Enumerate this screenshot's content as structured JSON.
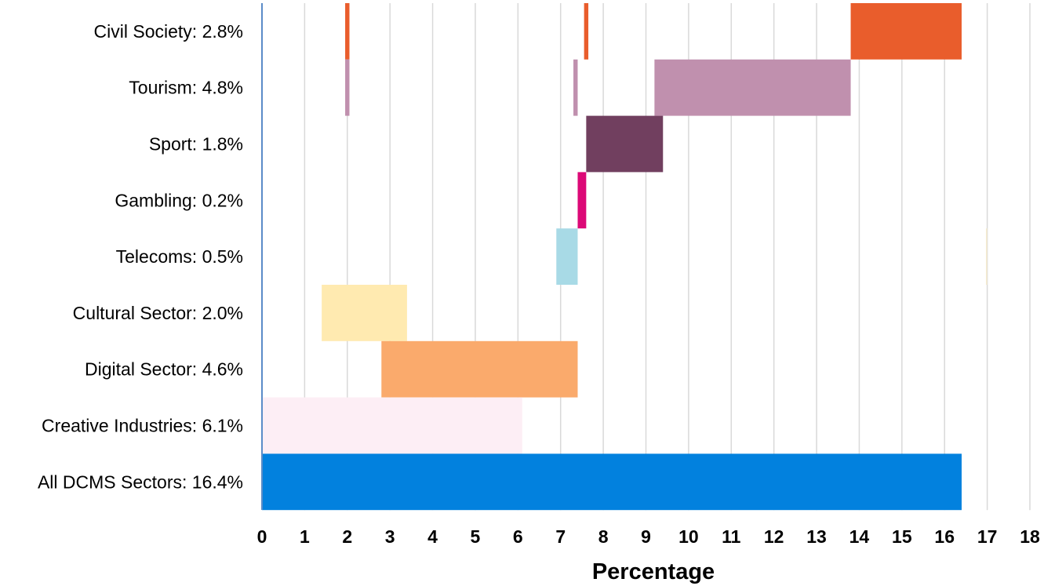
{
  "chart_data": {
    "type": "bar",
    "subtype": "floating-horizontal-bar",
    "xlabel": "Percentage",
    "xlim": [
      0,
      18
    ],
    "x_ticks": [
      "0",
      "1",
      "2",
      "3",
      "4",
      "5",
      "6",
      "7",
      "8",
      "9",
      "10",
      "11",
      "12",
      "13",
      "14",
      "15",
      "16",
      "17",
      "18"
    ],
    "grid": "vertical",
    "categories": [
      "Civil Society: 2.8%",
      "Tourism: 4.8%",
      "Sport: 1.8%",
      "Gambling: 0.2%",
      "Telecoms: 0.5%",
      "Cultural Sector: 2.0%",
      "Digital Sector: 4.6%",
      "Creative Industries: 6.1%",
      "All DCMS Sectors: 16.4%"
    ],
    "segments": [
      {
        "category": "Civil Society: 2.8%",
        "start": 13.8,
        "end": 16.4,
        "color": "#E95D2C"
      },
      {
        "category": "Civil Society: 2.8%",
        "start": 7.55,
        "end": 7.65,
        "color": "#E95D2C"
      },
      {
        "category": "Civil Society: 2.8%",
        "start": 1.95,
        "end": 2.05,
        "color": "#E95D2C"
      },
      {
        "category": "Tourism: 4.8%",
        "start": 9.2,
        "end": 13.8,
        "color": "#C090AE"
      },
      {
        "category": "Tourism: 4.8%",
        "start": 7.3,
        "end": 7.4,
        "color": "#C090AE"
      },
      {
        "category": "Tourism: 4.8%",
        "start": 1.95,
        "end": 2.05,
        "color": "#C090AE"
      },
      {
        "category": "Sport: 1.8%",
        "start": 7.6,
        "end": 9.4,
        "color": "#713F5F"
      },
      {
        "category": "Gambling: 0.2%",
        "start": 7.4,
        "end": 7.6,
        "color": "#DC0977"
      },
      {
        "category": "Telecoms: 0.5%",
        "start": 6.9,
        "end": 7.4,
        "color": "#A8DAE6"
      },
      {
        "category": "Telecoms: 0.5%",
        "start": 16.97,
        "end": 17.0,
        "color": "#F5EBD0"
      },
      {
        "category": "Cultural Sector: 2.0%",
        "start": 1.4,
        "end": 3.4,
        "color": "#FFEAB0"
      },
      {
        "category": "Digital Sector: 4.6%",
        "start": 2.8,
        "end": 7.4,
        "color": "#FAAA6C"
      },
      {
        "category": "Creative Industries: 6.1%",
        "start": 0.0,
        "end": 6.1,
        "color": "#FDEEF5"
      },
      {
        "category": "All DCMS Sectors: 16.4%",
        "start": 0.0,
        "end": 16.4,
        "color": "#0281DE"
      }
    ],
    "colors": {
      "grid": "#D9D9D9",
      "axis": "#5B8CC8",
      "text": "#000000"
    }
  }
}
